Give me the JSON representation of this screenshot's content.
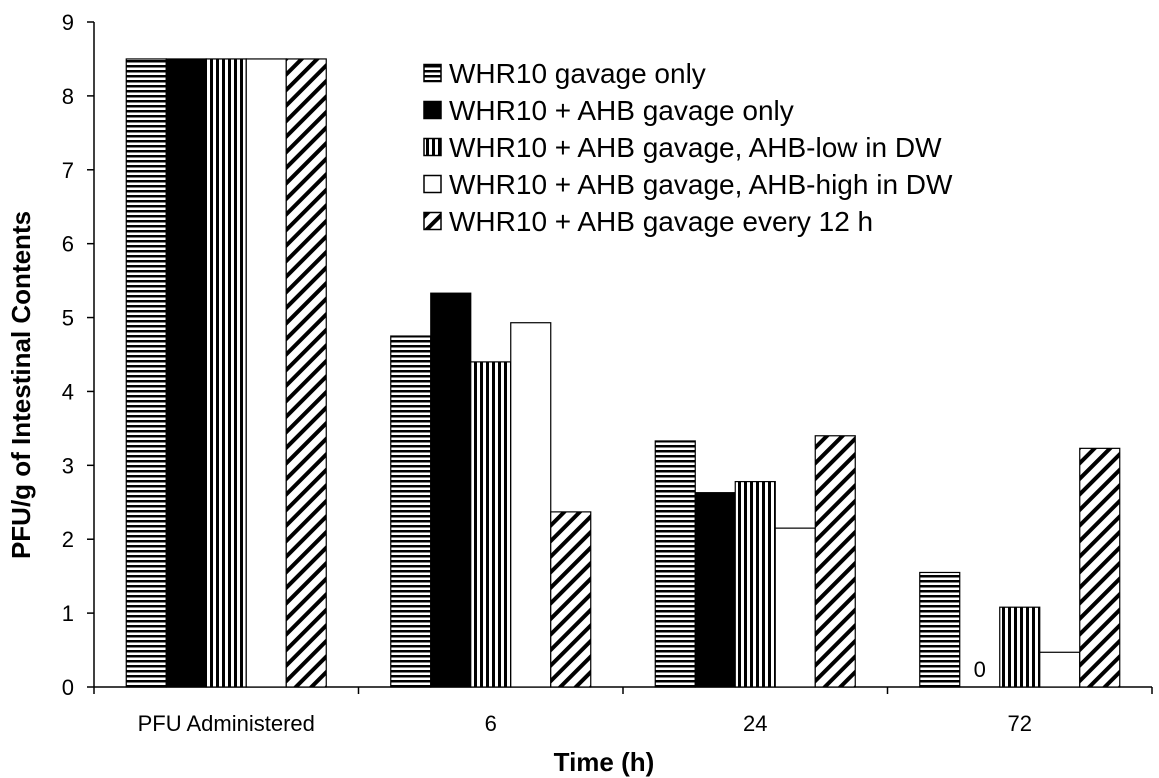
{
  "chart_data": {
    "type": "bar",
    "title": "",
    "xlabel": "Time (h)",
    "ylabel": "PFU/g of Intestinal Contents",
    "ylim": [
      0,
      9
    ],
    "yticks": [
      0,
      1,
      2,
      3,
      4,
      5,
      6,
      7,
      8,
      9
    ],
    "categories": [
      "PFU Administered",
      "6",
      "24",
      "72"
    ],
    "series": [
      {
        "name": "WHR10 gavage only",
        "pattern": "horizontal-stripes",
        "values": [
          8.5,
          4.75,
          3.33,
          1.55
        ]
      },
      {
        "name": "WHR10 + AHB gavage only",
        "pattern": "solid-black",
        "values": [
          8.5,
          5.33,
          2.63,
          0
        ]
      },
      {
        "name": "WHR10 + AHB gavage, AHB-low in DW",
        "pattern": "vertical-stripes",
        "values": [
          8.5,
          4.4,
          2.78,
          1.08
        ]
      },
      {
        "name": "WHR10 + AHB gavage, AHB-high in DW",
        "pattern": "white",
        "values": [
          8.5,
          4.93,
          2.15,
          0.47
        ]
      },
      {
        "name": "WHR10 + AHB gavage every 12 h",
        "pattern": "diagonal-stripes",
        "values": [
          8.5,
          2.37,
          3.4,
          3.23
        ]
      }
    ],
    "annotations": [
      {
        "text": "0",
        "category": "72",
        "series": "WHR10 + AHB gavage only"
      }
    ],
    "legend_position": "top-right",
    "grid": false
  }
}
